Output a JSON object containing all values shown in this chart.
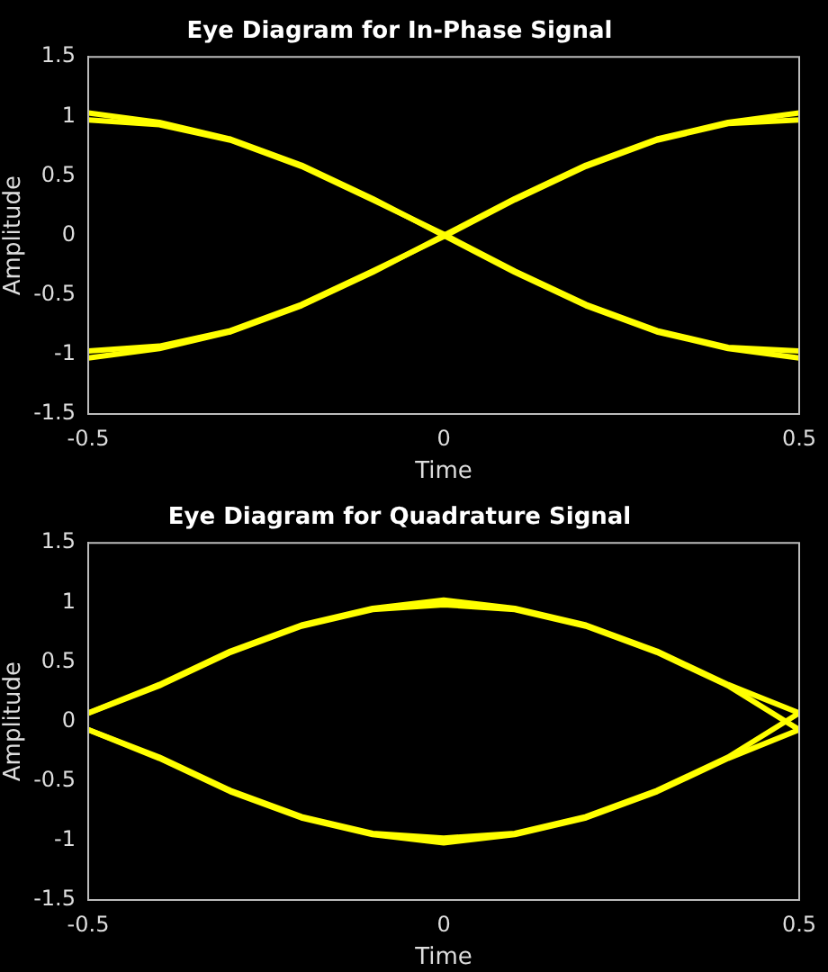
{
  "chart_data": [
    {
      "type": "line",
      "title": "Eye Diagram for In-Phase Signal",
      "xlabel": "Time",
      "ylabel": "Amplitude",
      "x": [
        -0.5,
        -0.4,
        -0.3,
        -0.2,
        -0.1,
        0,
        0.1,
        0.2,
        0.3,
        0.4,
        0.5
      ],
      "series": [
        {
          "color": "#ffff00",
          "values": [
            1.03,
            0.95,
            0.81,
            0.59,
            0.31,
            0,
            -0.31,
            -0.59,
            -0.81,
            -0.95,
            -1.03
          ]
        },
        {
          "color": "#ffff00",
          "values": [
            0.97,
            0.93,
            0.8,
            0.58,
            0.3,
            0.01,
            -0.3,
            -0.58,
            -0.8,
            -0.94,
            -0.97
          ]
        },
        {
          "color": "#ffff00",
          "values": [
            -1.03,
            -0.95,
            -0.81,
            -0.59,
            -0.31,
            0,
            0.31,
            0.59,
            0.81,
            0.95,
            1.03
          ]
        },
        {
          "color": "#ffff00",
          "values": [
            -0.97,
            -0.93,
            -0.8,
            -0.58,
            -0.3,
            -0.01,
            0.3,
            0.58,
            0.8,
            0.94,
            0.97
          ]
        }
      ],
      "xlim": [
        -0.5,
        0.5
      ],
      "xticks": [
        -0.5,
        0,
        0.5
      ],
      "ylim": [
        -1.5,
        1.5
      ],
      "yticks": [
        -1.5,
        -1,
        -0.5,
        0,
        0.5,
        1,
        1.5
      ],
      "grid": false,
      "legend": false,
      "marker": "none",
      "line_style": "solid"
    },
    {
      "type": "line",
      "title": "Eye Diagram for Quadrature Signal",
      "xlabel": "Time",
      "ylabel": "Amplitude",
      "x": [
        -0.5,
        -0.4,
        -0.3,
        -0.2,
        -0.1,
        0,
        0.1,
        0.2,
        0.3,
        0.4,
        0.5
      ],
      "series": [
        {
          "color": "#ffff00",
          "values": [
            0.07,
            0.31,
            0.59,
            0.81,
            0.95,
            1.02,
            0.95,
            0.81,
            0.59,
            0.31,
            0.07
          ]
        },
        {
          "color": "#ffff00",
          "values": [
            0.07,
            0.3,
            0.58,
            0.8,
            0.94,
            0.98,
            0.94,
            0.8,
            0.58,
            0.3,
            -0.07
          ]
        },
        {
          "color": "#ffff00",
          "values": [
            -0.07,
            -0.31,
            -0.59,
            -0.81,
            -0.95,
            -1.02,
            -0.95,
            -0.81,
            -0.59,
            -0.31,
            -0.07
          ]
        },
        {
          "color": "#ffff00",
          "values": [
            -0.07,
            -0.3,
            -0.58,
            -0.8,
            -0.94,
            -0.98,
            -0.94,
            -0.8,
            -0.58,
            -0.3,
            0.07
          ]
        }
      ],
      "xlim": [
        -0.5,
        0.5
      ],
      "xticks": [
        -0.5,
        0,
        0.5
      ],
      "ylim": [
        -1.5,
        1.5
      ],
      "yticks": [
        -1.5,
        -1,
        -0.5,
        0,
        0.5,
        1,
        1.5
      ],
      "grid": false,
      "legend": false,
      "marker": "none",
      "line_style": "solid"
    }
  ]
}
